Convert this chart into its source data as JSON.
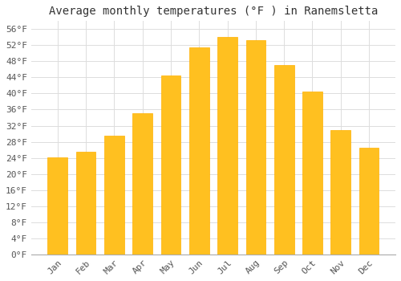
{
  "title": "Average monthly temperatures (°F ) in Ranemsletta",
  "months": [
    "Jan",
    "Feb",
    "Mar",
    "Apr",
    "May",
    "Jun",
    "Jul",
    "Aug",
    "Sep",
    "Oct",
    "Nov",
    "Dec"
  ],
  "values": [
    24.1,
    25.5,
    29.5,
    35.0,
    44.5,
    51.5,
    54.1,
    53.2,
    47.0,
    40.5,
    31.0,
    26.5
  ],
  "bar_color": "#FFC020",
  "bar_edge_color": "#FFB000",
  "background_color": "#FFFFFF",
  "plot_bg_color": "#FFFFFF",
  "grid_color": "#DDDDDD",
  "text_color": "#555555",
  "title_color": "#333333",
  "yticks": [
    0,
    4,
    8,
    12,
    16,
    20,
    24,
    28,
    32,
    36,
    40,
    44,
    48,
    52,
    56
  ],
  "ylim": [
    0,
    58
  ],
  "title_fontsize": 10,
  "tick_fontsize": 8,
  "font_family": "monospace",
  "bar_width": 0.7
}
